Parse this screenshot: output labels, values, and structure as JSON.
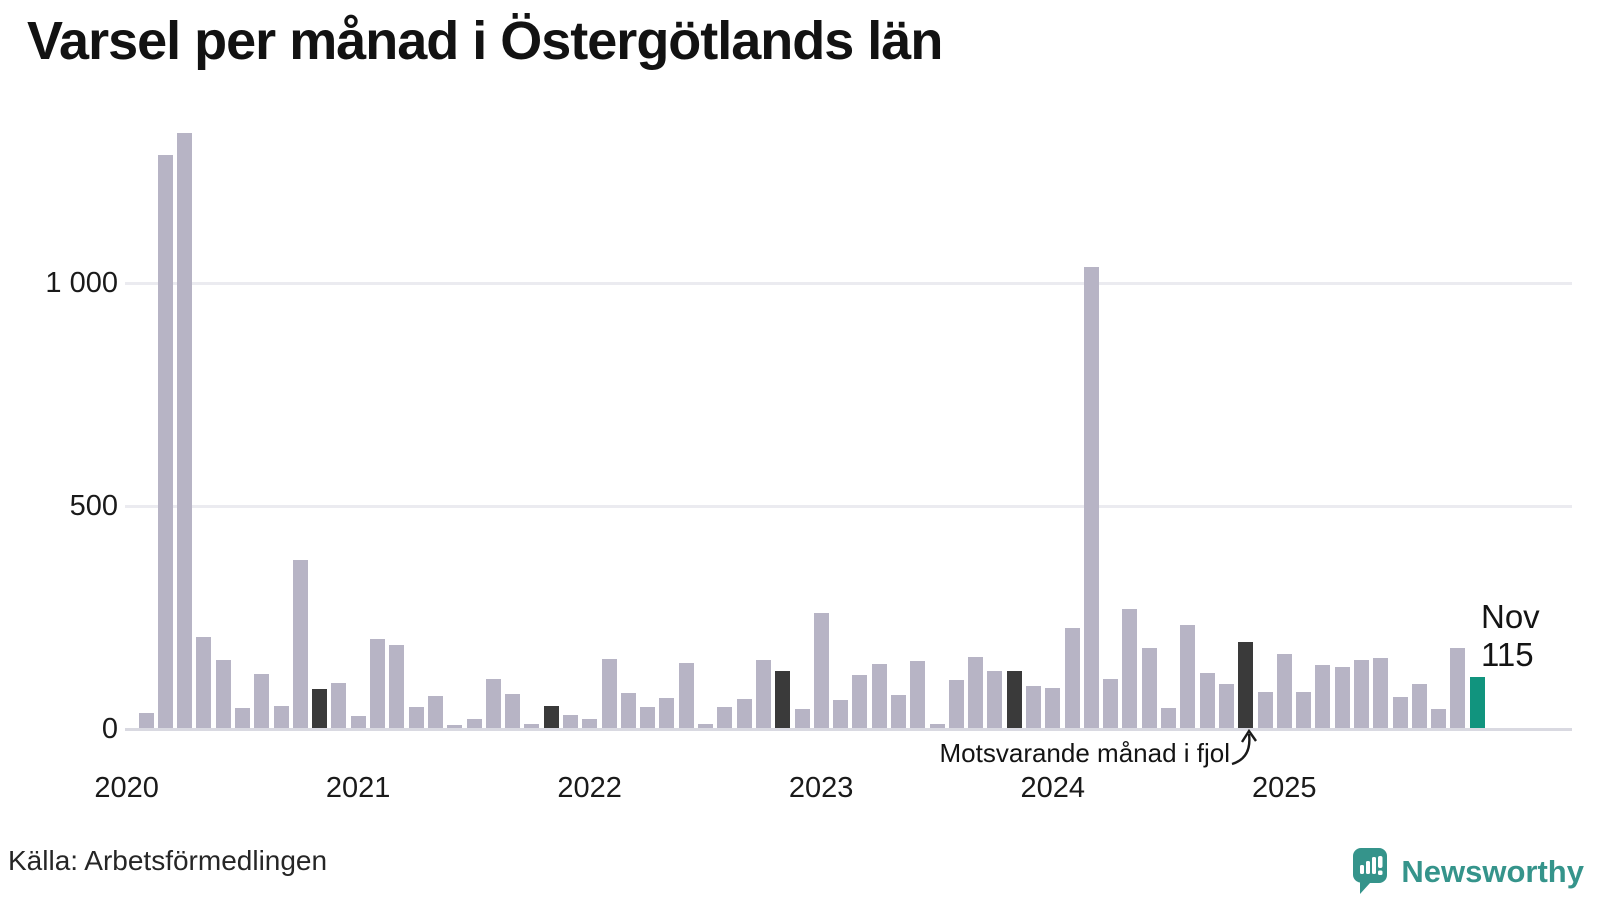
{
  "title": "Varsel per månad i Östergötlands län",
  "source": "Källa: Arbetsförmedlingen",
  "annotation": {
    "text": "Motsvarande månad i fjol"
  },
  "current_label": {
    "month": "Nov",
    "value": "115"
  },
  "brand": {
    "name": "Newsworthy"
  },
  "colors": {
    "bar": "#b7b4c5",
    "highlight_dark": "#3a3a3a",
    "highlight_current": "#11947e",
    "grid": "#ebebf0",
    "axis": "#d9d9e1",
    "text": "#1a1a1a",
    "brand_teal": "#35948b"
  },
  "chart_data": {
    "type": "bar",
    "title": "Varsel per månad i Östergötlands län",
    "x_unit": "month",
    "points": [
      [
        "2020-01",
        0
      ],
      [
        "2020-02",
        33
      ],
      [
        "2020-03",
        1285
      ],
      [
        "2020-04",
        1335
      ],
      [
        "2020-05",
        205
      ],
      [
        "2020-06",
        152
      ],
      [
        "2020-07",
        46
      ],
      [
        "2020-08",
        121
      ],
      [
        "2020-09",
        50
      ],
      [
        "2020-10",
        377
      ],
      [
        "2020-11",
        87
      ],
      [
        "2020-12",
        100
      ],
      [
        "2021-01",
        28
      ],
      [
        "2021-02",
        200
      ],
      [
        "2021-03",
        187
      ],
      [
        "2021-04",
        48
      ],
      [
        "2021-05",
        71
      ],
      [
        "2021-06",
        6
      ],
      [
        "2021-07",
        21
      ],
      [
        "2021-08",
        110
      ],
      [
        "2021-09",
        77
      ],
      [
        "2021-10",
        8
      ],
      [
        "2021-11",
        50
      ],
      [
        "2021-12",
        30
      ],
      [
        "2022-01",
        21
      ],
      [
        "2022-02",
        155
      ],
      [
        "2022-03",
        78
      ],
      [
        "2022-04",
        47
      ],
      [
        "2022-05",
        67
      ],
      [
        "2022-06",
        146
      ],
      [
        "2022-07",
        10
      ],
      [
        "2022-08",
        47
      ],
      [
        "2022-09",
        66
      ],
      [
        "2022-10",
        153
      ],
      [
        "2022-11",
        129
      ],
      [
        "2022-12",
        43
      ],
      [
        "2023-01",
        257
      ],
      [
        "2023-02",
        63
      ],
      [
        "2023-03",
        119
      ],
      [
        "2023-04",
        144
      ],
      [
        "2023-05",
        73
      ],
      [
        "2023-06",
        151
      ],
      [
        "2023-07",
        8
      ],
      [
        "2023-08",
        107
      ],
      [
        "2023-09",
        159
      ],
      [
        "2023-10",
        128
      ],
      [
        "2023-11",
        127
      ],
      [
        "2023-12",
        94
      ],
      [
        "2024-01",
        89
      ],
      [
        "2024-02",
        225
      ],
      [
        "2024-03",
        1035
      ],
      [
        "2024-04",
        111
      ],
      [
        "2024-05",
        268
      ],
      [
        "2024-06",
        180
      ],
      [
        "2024-07",
        46
      ],
      [
        "2024-08",
        232
      ],
      [
        "2024-09",
        124
      ],
      [
        "2024-10",
        98
      ],
      [
        "2024-11",
        192
      ],
      [
        "2024-12",
        80
      ],
      [
        "2025-01",
        167
      ],
      [
        "2025-02",
        81
      ],
      [
        "2025-03",
        142
      ],
      [
        "2025-04",
        138
      ],
      [
        "2025-05",
        152
      ],
      [
        "2025-06",
        158
      ],
      [
        "2025-07",
        69
      ],
      [
        "2025-08",
        98
      ],
      [
        "2025-09",
        43
      ],
      [
        "2025-10",
        180
      ],
      [
        "2025-11",
        115
      ]
    ],
    "highlight_dark": [
      "2020-11",
      "2021-11",
      "2022-11",
      "2023-11",
      "2024-11"
    ],
    "current": "2025-11",
    "current_annotation": "Nov 115",
    "ylim": [
      0,
      1400
    ],
    "yticks": [
      0,
      500,
      1000
    ],
    "ytick_labels": [
      "0",
      "500",
      "1 000"
    ],
    "xticks": [
      "2020",
      "2021",
      "2022",
      "2023",
      "2024",
      "2025"
    ],
    "legend": "none",
    "grid": "horizontal"
  }
}
